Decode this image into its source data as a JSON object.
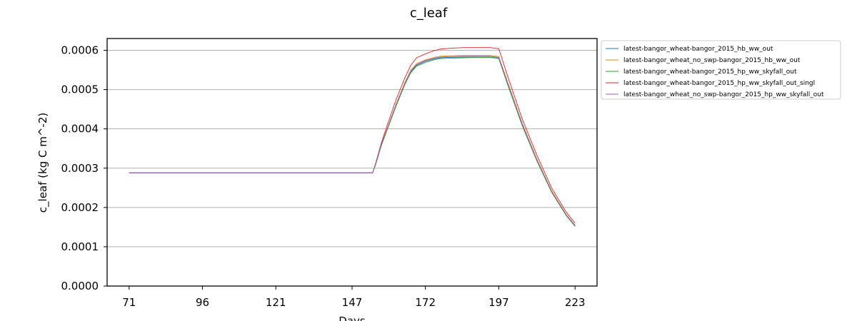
{
  "chart_data": {
    "type": "line",
    "title": "c_leaf",
    "xlabel": "Days",
    "ylabel": "c_leaf (kg C m^-2)",
    "xlim": [
      63.5,
      230.5
    ],
    "ylim": [
      0.0,
      0.00063
    ],
    "x_ticks": [
      71,
      96,
      121,
      147,
      172,
      197,
      223
    ],
    "y_ticks": [
      0.0,
      0.0001,
      0.0002,
      0.0003,
      0.0004,
      0.0005,
      0.0006
    ],
    "y_tick_labels": [
      "0.0000",
      "0.0001",
      "0.0002",
      "0.0003",
      "0.0004",
      "0.0005",
      "0.0006"
    ],
    "grid": "horizontal",
    "legend_position": "outside-right",
    "x": [
      71,
      96,
      121,
      147,
      154,
      155,
      157,
      159,
      162,
      165,
      167,
      169,
      172,
      175,
      177,
      180,
      185,
      190,
      194,
      197,
      200,
      205,
      210,
      215,
      220,
      223
    ],
    "series": [
      {
        "name": "latest-bangor_wheat-bangor_2015_hb_ww_out",
        "color": "#1f77b4",
        "values": [
          0.000288,
          0.000288,
          0.000288,
          0.000288,
          0.000288,
          0.00031,
          0.00036,
          0.0004,
          0.00046,
          0.000515,
          0.000545,
          0.000562,
          0.000572,
          0.000578,
          0.000581,
          0.000582,
          0.000583,
          0.000583,
          0.000583,
          0.00058,
          0.000515,
          0.00041,
          0.00032,
          0.00024,
          0.00018,
          0.000153
        ]
      },
      {
        "name": "latest-bangor_wheat_no_swp-bangor_2015_hb_ww_out",
        "color": "#ff7f0e",
        "values": [
          0.000288,
          0.000288,
          0.000288,
          0.000288,
          0.000288,
          0.00031,
          0.000362,
          0.000402,
          0.000463,
          0.000518,
          0.000549,
          0.000566,
          0.000576,
          0.000582,
          0.000585,
          0.000586,
          0.000587,
          0.000587,
          0.000587,
          0.000584,
          0.00052,
          0.000414,
          0.000323,
          0.000243,
          0.000182,
          0.000155
        ]
      },
      {
        "name": "latest-bangor_wheat-bangor_2015_hp_ww_skyfall_out",
        "color": "#2ca02c",
        "values": [
          0.000288,
          0.000288,
          0.000288,
          0.000288,
          0.000288,
          0.000308,
          0.000358,
          0.000398,
          0.000458,
          0.000513,
          0.000543,
          0.00056,
          0.000569,
          0.000576,
          0.000579,
          0.00058,
          0.000581,
          0.000582,
          0.000582,
          0.000579,
          0.000513,
          0.000408,
          0.000318,
          0.000239,
          0.000179,
          0.000152
        ]
      },
      {
        "name": "latest-bangor_wheat-bangor_2015_hp_ww_skyfall_out_singl",
        "color": "#d62728",
        "values": [
          0.000288,
          0.000288,
          0.000288,
          0.000288,
          0.000288,
          0.000312,
          0.000365,
          0.00041,
          0.000475,
          0.00053,
          0.000562,
          0.000581,
          0.000591,
          0.000599,
          0.000603,
          0.000605,
          0.000607,
          0.000607,
          0.000607,
          0.000604,
          0.000535,
          0.000425,
          0.000333,
          0.00025,
          0.000188,
          0.00016
        ]
      },
      {
        "name": "latest-bangor_wheat_no_swp-bangor_2015_hp_ww_skyfall_out",
        "color": "#9467bd",
        "values": [
          0.000288,
          0.000288,
          0.000288,
          0.000288,
          0.000288,
          0.00031,
          0.000361,
          0.000401,
          0.000462,
          0.000516,
          0.000547,
          0.000564,
          0.000574,
          0.00058,
          0.000583,
          0.000584,
          0.000585,
          0.000585,
          0.000585,
          0.000582,
          0.000517,
          0.000412,
          0.000321,
          0.000241,
          0.000181,
          0.000154
        ]
      }
    ]
  }
}
